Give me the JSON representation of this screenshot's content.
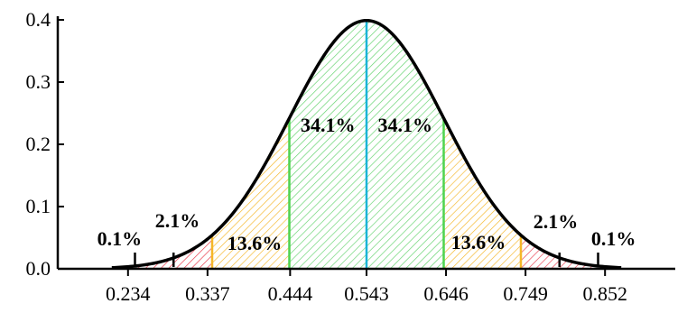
{
  "chart_data": {
    "type": "area",
    "distribution": "normal",
    "mean": 0.543,
    "sd": 0.1,
    "ylim": [
      0,
      0.4
    ],
    "xlim": [
      0.143,
      0.943
    ],
    "x_ticks": [
      "0.234",
      "0.337",
      "0.444",
      "0.543",
      "0.646",
      "0.749",
      "0.852"
    ],
    "y_ticks": [
      "0.0",
      "0.1",
      "0.2",
      "0.3",
      "0.4"
    ],
    "regions": [
      {
        "from": 0.243,
        "to": 0.343,
        "label": "2.1%",
        "color": "#e8394a"
      },
      {
        "from": 0.343,
        "to": 0.443,
        "label": "13.6%",
        "color": "#f5b72a"
      },
      {
        "from": 0.443,
        "to": 0.543,
        "label": "34.1%",
        "color": "#5fd16a"
      },
      {
        "from": 0.543,
        "to": 0.643,
        "label": "34.1%",
        "color": "#5fd16a"
      },
      {
        "from": 0.643,
        "to": 0.743,
        "label": "13.6%",
        "color": "#f5b72a"
      },
      {
        "from": 0.743,
        "to": 0.843,
        "label": "2.1%",
        "color": "#e8394a"
      }
    ],
    "tail_labels": [
      "0.1%",
      "0.1%"
    ],
    "boundary_colors": {
      "mean": "#1ab4d8",
      "sd1": "#4fd34f",
      "sd2": "#f5b72a"
    },
    "title": "",
    "xlabel": "",
    "ylabel": "",
    "grid": false
  }
}
